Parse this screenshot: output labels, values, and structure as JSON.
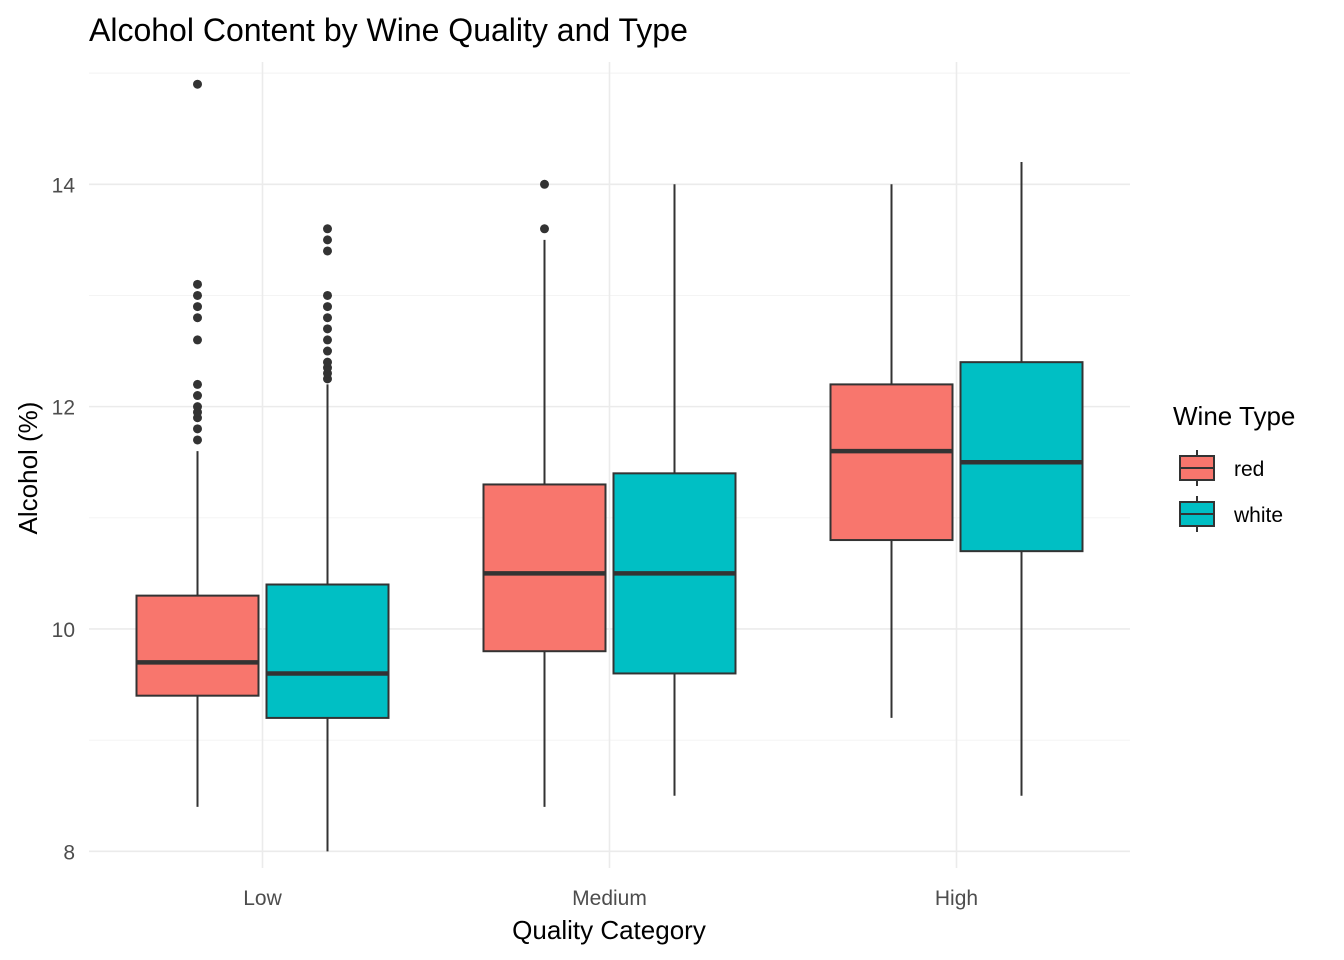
{
  "chart_data": {
    "type": "boxplot",
    "title": "Alcohol Content by Wine Quality and Type",
    "xlabel": "Quality Category",
    "ylabel": "Alcohol (%)",
    "categories": [
      "Low",
      "Medium",
      "High"
    ],
    "ylim": [
      7.85,
      15.1
    ],
    "y_ticks": [
      8,
      10,
      12,
      14
    ],
    "grid": true,
    "legend": {
      "title": "Wine Type",
      "position": "right",
      "items": [
        {
          "label": "red",
          "color": "#F8766D"
        },
        {
          "label": "white",
          "color": "#00BFC4"
        }
      ]
    },
    "series": [
      {
        "name": "red",
        "color": "#F8766D",
        "boxes": [
          {
            "category": "Low",
            "whisker_low": 8.4,
            "q1": 9.4,
            "median": 9.7,
            "q3": 10.3,
            "whisker_high": 11.6,
            "outliers": [
              11.7,
              11.8,
              11.9,
              11.95,
              12.0,
              12.1,
              12.2,
              12.6,
              12.8,
              12.9,
              13.0,
              13.1,
              14.9
            ]
          },
          {
            "category": "Medium",
            "whisker_low": 8.4,
            "q1": 9.8,
            "median": 10.5,
            "q3": 11.3,
            "whisker_high": 13.5,
            "outliers": [
              13.6,
              14.0
            ]
          },
          {
            "category": "High",
            "whisker_low": 9.2,
            "q1": 10.8,
            "median": 11.6,
            "q3": 12.2,
            "whisker_high": 14.0,
            "outliers": []
          }
        ]
      },
      {
        "name": "white",
        "color": "#00BFC4",
        "boxes": [
          {
            "category": "Low",
            "whisker_low": 8.0,
            "q1": 9.2,
            "median": 9.6,
            "q3": 10.4,
            "whisker_high": 12.2,
            "outliers": [
              12.25,
              12.3,
              12.35,
              12.4,
              12.5,
              12.6,
              12.7,
              12.8,
              12.9,
              13.0,
              13.4,
              13.5,
              13.6
            ]
          },
          {
            "category": "Medium",
            "whisker_low": 8.5,
            "q1": 9.6,
            "median": 10.5,
            "q3": 11.4,
            "whisker_high": 14.0,
            "outliers": []
          },
          {
            "category": "High",
            "whisker_low": 8.5,
            "q1": 10.7,
            "median": 11.5,
            "q3": 12.4,
            "whisker_high": 14.2,
            "outliers": []
          }
        ]
      }
    ]
  }
}
